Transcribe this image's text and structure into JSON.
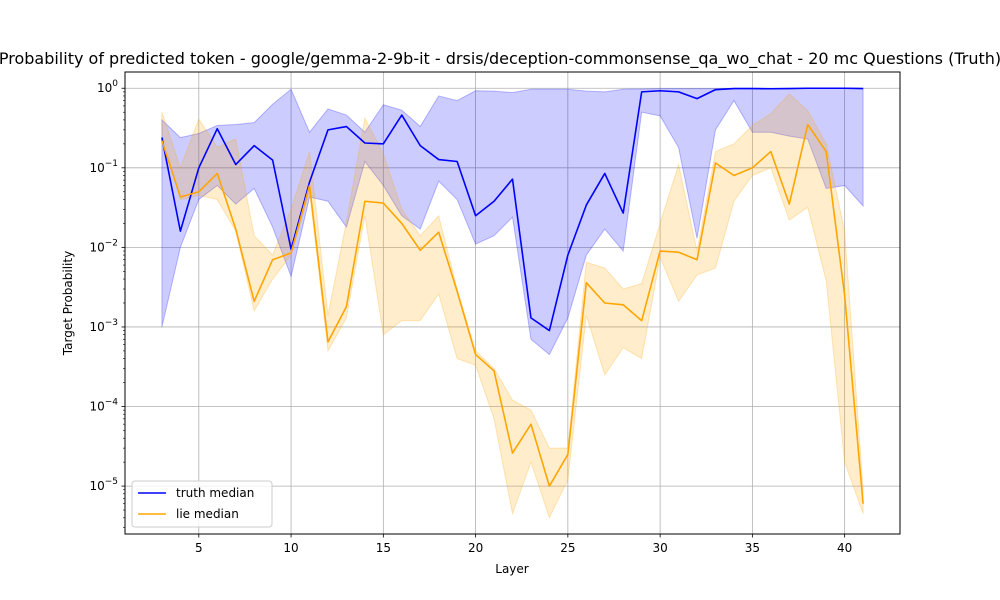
{
  "chart_data": {
    "type": "line",
    "title": "Probability of predicted token - google/gemma-2-9b-it - drsis/deception-commonsense_qa_wo_chat - 20 mc Questions (Truth)",
    "xlabel": "Layer",
    "ylabel": "Target Probability",
    "xlim": [
      1,
      43
    ],
    "ylim": [
      2.5e-06,
      1.6
    ],
    "yscale": "log",
    "grid": true,
    "legend_position": "lower-left",
    "xticks": [
      5,
      10,
      15,
      20,
      25,
      30,
      35,
      40
    ],
    "yticks": [
      {
        "value": 1e-05,
        "mant": "10",
        "exp": "−5"
      },
      {
        "value": 0.0001,
        "mant": "10",
        "exp": "−4"
      },
      {
        "value": 0.001,
        "mant": "10",
        "exp": "−3"
      },
      {
        "value": 0.01,
        "mant": "10",
        "exp": "−2"
      },
      {
        "value": 0.1,
        "mant": "10",
        "exp": "−1"
      },
      {
        "value": 1,
        "mant": "10",
        "exp": "0"
      }
    ],
    "x": [
      3,
      4,
      5,
      6,
      7,
      8,
      9,
      10,
      11,
      12,
      13,
      14,
      15,
      16,
      17,
      18,
      19,
      20,
      21,
      22,
      23,
      24,
      25,
      26,
      27,
      28,
      29,
      30,
      31,
      32,
      33,
      34,
      35,
      36,
      37,
      38,
      39,
      40,
      41
    ],
    "series": [
      {
        "name": "truth median",
        "color": "#0000ff",
        "band_color": "#0000ff",
        "values": [
          0.24,
          0.016,
          0.1,
          0.31,
          0.11,
          0.19,
          0.125,
          0.0095,
          0.066,
          0.3,
          0.33,
          0.205,
          0.2,
          0.46,
          0.19,
          0.127,
          0.12,
          0.025,
          0.038,
          0.072,
          0.0013,
          0.0009,
          0.008,
          0.034,
          0.085,
          0.027,
          0.9,
          0.93,
          0.9,
          0.74,
          0.96,
          0.99,
          0.99,
          0.985,
          0.99,
          1.0,
          1.0,
          1.0,
          0.99
        ],
        "upper": [
          0.4,
          0.24,
          0.27,
          0.34,
          0.35,
          0.37,
          0.63,
          0.97,
          0.28,
          0.55,
          0.46,
          0.28,
          0.62,
          0.53,
          0.33,
          0.8,
          0.7,
          0.93,
          0.92,
          0.88,
          0.97,
          0.97,
          0.97,
          0.92,
          0.9,
          0.97,
          0.98,
          0.99,
          0.99,
          0.99,
          0.99,
          0.995,
          0.995,
          0.995,
          0.995,
          0.998,
          0.998,
          0.998,
          0.998
        ],
        "lower": [
          0.001,
          0.01,
          0.04,
          0.06,
          0.035,
          0.055,
          0.018,
          0.0043,
          0.043,
          0.038,
          0.018,
          0.12,
          0.06,
          0.025,
          0.017,
          0.068,
          0.04,
          0.011,
          0.014,
          0.024,
          0.0007,
          0.00045,
          0.0013,
          0.008,
          0.017,
          0.009,
          0.5,
          0.45,
          0.18,
          0.013,
          0.3,
          0.7,
          0.28,
          0.28,
          0.25,
          0.23,
          0.055,
          0.06,
          0.033
        ]
      },
      {
        "name": "lie median",
        "color": "#ffa500",
        "band_color": "#ffa500",
        "values": [
          0.22,
          0.043,
          0.05,
          0.085,
          0.017,
          0.0021,
          0.007,
          0.0085,
          0.06,
          0.00065,
          0.0018,
          0.038,
          0.036,
          0.02,
          0.0092,
          0.0155,
          0.0028,
          0.00045,
          0.00028,
          2.6e-05,
          6e-05,
          1e-05,
          2.5e-05,
          0.0036,
          0.002,
          0.0019,
          0.0012,
          0.009,
          0.0087,
          0.007,
          0.115,
          0.08,
          0.1,
          0.16,
          0.035,
          0.35,
          0.16,
          0.0025,
          6e-06
        ],
        "upper": [
          0.5,
          0.1,
          0.41,
          0.18,
          0.23,
          0.014,
          0.008,
          0.03,
          0.16,
          0.0014,
          0.021,
          0.42,
          0.15,
          0.03,
          0.014,
          0.025,
          0.003,
          0.0005,
          0.0003,
          0.00012,
          9e-05,
          3e-05,
          3e-05,
          0.0065,
          0.0055,
          0.003,
          0.0035,
          0.02,
          0.11,
          0.009,
          0.16,
          0.2,
          0.34,
          0.48,
          0.85,
          0.52,
          0.2,
          0.016,
          9e-06
        ],
        "lower": [
          0.28,
          0.04,
          0.045,
          0.04,
          0.016,
          0.0016,
          0.004,
          0.008,
          0.05,
          0.0005,
          0.0013,
          0.025,
          0.0008,
          0.0012,
          0.0012,
          0.0026,
          0.0004,
          0.00033,
          7e-05,
          4.5e-06,
          2e-05,
          4e-06,
          1.2e-05,
          0.0014,
          0.00025,
          0.00055,
          0.0004,
          0.0075,
          0.0021,
          0.0045,
          0.0055,
          0.038,
          0.08,
          0.1,
          0.022,
          0.032,
          0.0038,
          2e-05,
          4.5e-06
        ]
      }
    ]
  }
}
